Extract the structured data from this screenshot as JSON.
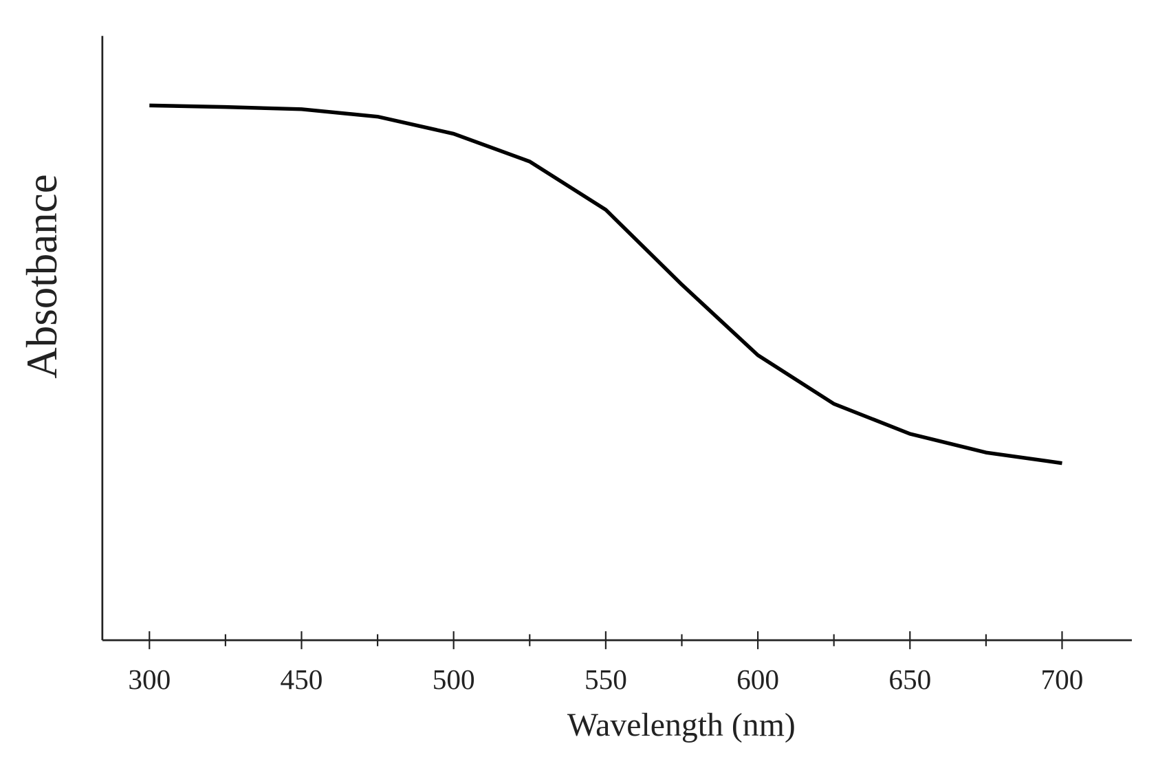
{
  "chart_data": {
    "type": "line",
    "x_label": "Wavelength (nm)",
    "y_label": "Absotbance",
    "categories": [
      "300",
      null,
      "450",
      null,
      "500",
      null,
      "550",
      null,
      "600",
      null,
      "650",
      null,
      "700"
    ],
    "series": [
      {
        "color": "#000000",
        "values": [
          1.0,
          0.997,
          0.993,
          0.979,
          0.947,
          0.895,
          0.805,
          0.665,
          0.533,
          0.442,
          0.386,
          0.351,
          0.331
        ]
      }
    ],
    "ylim": [
      0,
      1.13
    ]
  }
}
